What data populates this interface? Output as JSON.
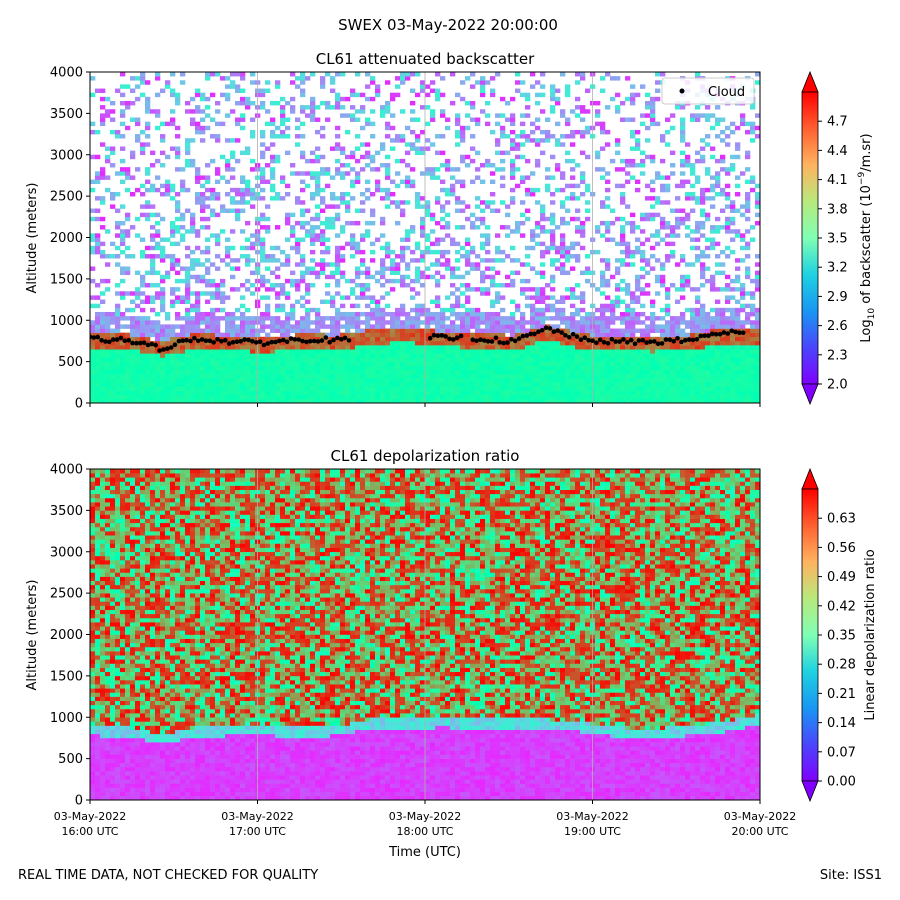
{
  "figure": {
    "suptitle": "SWEX 03-May-2022 20:00:00",
    "footer_left": "REAL TIME DATA, NOT CHECKED FOR QUALITY",
    "footer_right": "Site: ISS1"
  },
  "chart_data": [
    {
      "type": "heatmap",
      "title": "CL61 attenuated backscatter",
      "ylabel": "Altitude (meters)",
      "xlabel": "",
      "x_tick_labels": [],
      "ylim": [
        0,
        4000
      ],
      "y_ticks": [
        0,
        500,
        1000,
        1500,
        2000,
        2500,
        3000,
        3500,
        4000
      ],
      "x_range_hours": [
        16,
        20
      ],
      "x_ticks_hours": [
        16,
        17,
        18,
        19,
        20
      ],
      "colorbar": {
        "label_prefix": "Log",
        "label_sub": "10",
        "label_mid": " of backscatter (10",
        "label_sup": "−9",
        "label_suffix": "/m.sr)",
        "range": [
          2.0,
          5.0
        ],
        "ticks": [
          "2.0",
          "2.3",
          "2.6",
          "2.9",
          "3.2",
          "3.5",
          "3.8",
          "4.1",
          "4.4",
          "4.7"
        ]
      },
      "legend": {
        "label": "Cloud",
        "position": "top-right"
      },
      "cloud_base_series": {
        "name": "Cloud",
        "x_hours": [
          16.0,
          16.25,
          16.35,
          16.5,
          16.75,
          17.0,
          17.25,
          17.4,
          17.5,
          17.6,
          18.0,
          18.2,
          18.4,
          18.5,
          18.75,
          19.0,
          19.25,
          19.5,
          19.75,
          19.9
        ],
        "altitude_m": [
          770,
          760,
          660,
          780,
          740,
          730,
          770,
          760,
          null,
          null,
          790,
          780,
          740,
          900,
          760,
          740,
          740,
          760,
          860,
          830
        ]
      }
    },
    {
      "type": "heatmap",
      "title": "CL61 depolarization ratio",
      "ylabel": "Altitude (meters)",
      "xlabel": "Time (UTC)",
      "ylim": [
        0,
        4000
      ],
      "y_ticks": [
        0,
        500,
        1000,
        1500,
        2000,
        2500,
        3000,
        3500,
        4000
      ],
      "x_range_hours": [
        16,
        20
      ],
      "x_ticks_hours": [
        16,
        17,
        18,
        19,
        20
      ],
      "x_tick_labels": [
        [
          "03-May-2022",
          "16:00 UTC"
        ],
        [
          "03-May-2022",
          "17:00 UTC"
        ],
        [
          "03-May-2022",
          "18:00 UTC"
        ],
        [
          "03-May-2022",
          "19:00 UTC"
        ],
        [
          "03-May-2022",
          "20:00 UTC"
        ]
      ],
      "colorbar": {
        "label": "Linear depolarization ratio",
        "range": [
          0.0,
          0.7
        ],
        "ticks": [
          "0.00",
          "0.07",
          "0.14",
          "0.21",
          "0.28",
          "0.35",
          "0.42",
          "0.49",
          "0.56",
          "0.63"
        ]
      },
      "boundary_layer_top_m": [
        820,
        800,
        720,
        800,
        820,
        820,
        800,
        820,
        900,
        900,
        920,
        900,
        900,
        900,
        860,
        800,
        780,
        820,
        860,
        950
      ]
    }
  ]
}
